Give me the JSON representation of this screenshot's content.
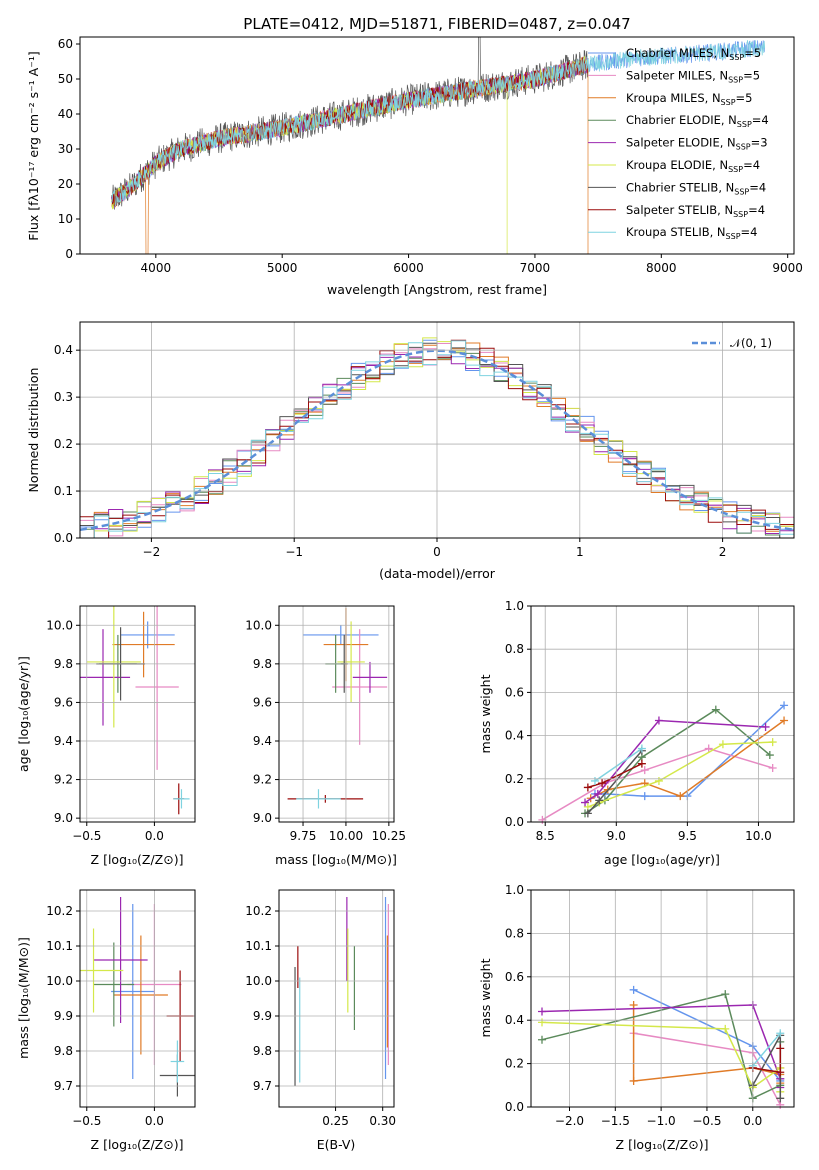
{
  "colors": [
    "#6495ed",
    "#e78ac3",
    "#e07b27",
    "#5b8a5b",
    "#9b27b0",
    "#d4e84a",
    "#555555",
    "#9b0c0c",
    "#7fd3e0"
  ],
  "chart_data": [
    {
      "id": "spectrum",
      "type": "line",
      "title": "PLATE=0412, MJD=51871, FIBERID=0487, z=0.047",
      "xlabel": "wavelength [Angstrom, rest frame]",
      "ylabel": "Flux [fλ10⁻¹⁷ erg cm⁻² s⁻¹ A⁻¹]",
      "xlim": [
        3400,
        9050
      ],
      "ylim": [
        0,
        62
      ],
      "xticks": [
        "4000",
        "5000",
        "6000",
        "7000",
        "8000",
        "9000"
      ],
      "yticks": [
        "0",
        "10",
        "20",
        "30",
        "40",
        "50",
        "60"
      ],
      "legend_position": "top-right",
      "series": [
        {
          "name": "Chabrier MILES, N_SSP=5"
        },
        {
          "name": "Salpeter MILES, N_SSP=5"
        },
        {
          "name": "Kroupa MILES, N_SSP=5"
        },
        {
          "name": "Chabrier ELODIE, N_SSP=4"
        },
        {
          "name": "Salpeter ELODIE, N_SSP=3"
        },
        {
          "name": "Kroupa ELODIE, N_SSP=4"
        },
        {
          "name": "Chabrier STELIB, N_SSP=4"
        },
        {
          "name": "Salpeter STELIB, N_SSP=4"
        },
        {
          "name": "Kroupa STELIB, N_SSP=4"
        }
      ],
      "continuum": {
        "x": [
          3650,
          3800,
          4000,
          4200,
          4500,
          5000,
          5500,
          6000,
          6500,
          7000,
          7400,
          7800,
          8200,
          8800
        ],
        "y": [
          15,
          19,
          26,
          30,
          33,
          36,
          40,
          44,
          47,
          50,
          54,
          56,
          57,
          59
        ]
      },
      "data_limits": [
        3650,
        7420,
        8820
      ]
    },
    {
      "id": "residuals",
      "type": "histogram",
      "xlabel": "(data-model)/error",
      "ylabel": "Normed distribution",
      "xlim": [
        -2.5,
        2.5
      ],
      "ylim": [
        0,
        0.46
      ],
      "xticks": [
        "−2",
        "−1",
        "0",
        "1",
        "2"
      ],
      "yticks": [
        "0.0",
        "0.1",
        "0.2",
        "0.3",
        "0.4"
      ],
      "legend": "𝒩(0, 1)",
      "legend_position": "top-right",
      "bin_width": 0.1,
      "grid": true
    },
    {
      "id": "age-vs-Z",
      "type": "errorbar",
      "xlabel": "Z [log₁₀(Z/Z⊙)]",
      "ylabel": "age  [log₁₀(age/yr)]",
      "xlim": [
        -0.55,
        0.3
      ],
      "ylim": [
        8.98,
        10.1
      ],
      "xticks": [
        "−0.5",
        "0.0"
      ],
      "yticks": [
        "9.0",
        "9.2",
        "9.4",
        "9.6",
        "9.8",
        "10.0"
      ],
      "points": [
        {
          "x": -0.05,
          "y": 9.95,
          "xerr": 0.2,
          "yerr": 0.07
        },
        {
          "x": 0.02,
          "y": 9.68,
          "xerr": 0.16,
          "yerr": 0.43
        },
        {
          "x": -0.08,
          "y": 9.9,
          "xerr": 0.23,
          "yerr": 0.17
        },
        {
          "x": -0.27,
          "y": 9.8,
          "xerr": 0.14,
          "yerr": 0.15
        },
        {
          "x": -0.38,
          "y": 9.73,
          "xerr": 0.2,
          "yerr": 0.25
        },
        {
          "x": -0.3,
          "y": 9.81,
          "xerr": 0.2,
          "yerr": 0.34
        },
        {
          "x": -0.25,
          "y": 9.8,
          "xerr": 0.18,
          "yerr": 0.19
        },
        {
          "x": 0.18,
          "y": 9.1,
          "xerr": 0.04,
          "yerr": 0.08
        },
        {
          "x": 0.2,
          "y": 9.1,
          "xerr": 0.06,
          "yerr": 0.05
        }
      ]
    },
    {
      "id": "age-vs-mass",
      "type": "errorbar",
      "xlabel": "mass [log₁₀(M/M⊙)]",
      "ylabel": "",
      "xlim": [
        9.61,
        10.28
      ],
      "ylim": [
        8.98,
        10.1
      ],
      "xticks": [
        "9.75",
        "10.00",
        "10.25"
      ],
      "yticks": [
        "9.0",
        "9.2",
        "9.4",
        "9.6",
        "9.8",
        "10.0"
      ],
      "points": [
        {
          "x": 9.97,
          "y": 9.95,
          "xerr": 0.22,
          "yerr": 0.05
        },
        {
          "x": 10.08,
          "y": 9.68,
          "xerr": 0.16,
          "yerr": 0.3
        },
        {
          "x": 10.0,
          "y": 9.9,
          "xerr": 0.13,
          "yerr": 0.19
        },
        {
          "x": 9.94,
          "y": 9.8,
          "xerr": 0.06,
          "yerr": 0.15
        },
        {
          "x": 10.14,
          "y": 9.73,
          "xerr": 0.1,
          "yerr": 0.08
        },
        {
          "x": 10.03,
          "y": 9.81,
          "xerr": 0.08,
          "yerr": 0.21
        },
        {
          "x": 9.99,
          "y": 9.8,
          "xerr": 0.02,
          "yerr": 0.15
        },
        {
          "x": 9.88,
          "y": 9.1,
          "xerr": 0.22,
          "yerr": 0.02
        },
        {
          "x": 9.84,
          "y": 9.1,
          "xerr": 0.13,
          "yerr": 0.05
        }
      ]
    },
    {
      "id": "weight-vs-age",
      "type": "line",
      "xlabel": "age  [log₁₀(age/yr)]",
      "ylabel": "mass weight",
      "xlim": [
        8.4,
        10.25
      ],
      "ylim": [
        0,
        1.0
      ],
      "xticks": [
        "8.5",
        "9.0",
        "9.5",
        "10.0"
      ],
      "yticks": [
        "0.0",
        "0.2",
        "0.4",
        "0.6",
        "0.8",
        "1.0"
      ],
      "grid": true,
      "series": [
        {
          "x": [
            8.85,
            8.92,
            9.2,
            9.5,
            10.18
          ],
          "y": [
            0.13,
            0.13,
            0.12,
            0.12,
            0.54
          ]
        },
        {
          "x": [
            8.48,
            8.92,
            9.2,
            9.65,
            10.1
          ],
          "y": [
            0.01,
            0.18,
            0.24,
            0.34,
            0.25
          ]
        },
        {
          "x": [
            8.82,
            8.94,
            9.2,
            9.45,
            10.18
          ],
          "y": [
            0.11,
            0.15,
            0.18,
            0.12,
            0.47
          ]
        },
        {
          "x": [
            8.78,
            8.92,
            9.18,
            9.7,
            10.08
          ],
          "y": [
            0.04,
            0.1,
            0.3,
            0.52,
            0.31
          ]
        },
        {
          "x": [
            8.78,
            8.87,
            9.3,
            10.05
          ],
          "y": [
            0.09,
            0.13,
            0.47,
            0.44
          ]
        },
        {
          "x": [
            8.8,
            8.88,
            9.3,
            9.75,
            10.1
          ],
          "y": [
            0.07,
            0.09,
            0.19,
            0.36,
            0.37
          ]
        },
        {
          "x": [
            8.8,
            8.88,
            9.18
          ],
          "y": [
            0.04,
            0.1,
            0.33
          ]
        },
        {
          "x": [
            8.8,
            8.9,
            9.18
          ],
          "y": [
            0.16,
            0.18,
            0.27
          ]
        },
        {
          "x": [
            8.85,
            9.18
          ],
          "y": [
            0.19,
            0.34
          ]
        }
      ]
    },
    {
      "id": "mass-vs-Z",
      "type": "errorbar",
      "xlabel": "Z [log₁₀(Z/Z⊙)]",
      "ylabel": "mass [log₁₀(M/M⊙)]",
      "xlim": [
        -0.55,
        0.3
      ],
      "ylim": [
        9.64,
        10.26
      ],
      "xticks": [
        "−0.5",
        "0.0"
      ],
      "yticks": [
        "9.7",
        "9.8",
        "9.9",
        "10.0",
        "10.1",
        "10.2"
      ],
      "points": [
        {
          "x": -0.16,
          "y": 9.97,
          "xerr": 0.16,
          "yerr": 0.25
        },
        {
          "x": 0.0,
          "y": 9.99,
          "xerr": 0.2,
          "yerr": 0.23
        },
        {
          "x": -0.1,
          "y": 9.96,
          "xerr": 0.2,
          "yerr": 0.17
        },
        {
          "x": -0.3,
          "y": 9.99,
          "xerr": 0.15,
          "yerr": 0.12
        },
        {
          "x": -0.25,
          "y": 10.06,
          "xerr": 0.2,
          "yerr": 0.18
        },
        {
          "x": -0.45,
          "y": 10.03,
          "xerr": 0.22,
          "yerr": 0.12
        },
        {
          "x": 0.17,
          "y": 9.73,
          "xerr": 0.13,
          "yerr": 0.06
        },
        {
          "x": 0.19,
          "y": 9.9,
          "xerr": 0.1,
          "yerr": 0.13
        },
        {
          "x": 0.17,
          "y": 9.77,
          "xerr": 0.05,
          "yerr": 0.06
        }
      ]
    },
    {
      "id": "mass-vs-ebv",
      "type": "errorbar",
      "xlabel": "E(B-V)",
      "ylabel": "",
      "xlim": [
        0.19,
        0.312
      ],
      "ylim": [
        9.64,
        10.26
      ],
      "xticks": [
        "0.25",
        "0.30"
      ],
      "yticks": [
        "9.7",
        "9.8",
        "9.9",
        "10.0",
        "10.1",
        "10.2"
      ],
      "points": [
        {
          "x": 0.303,
          "y": 9.98,
          "yerr": 0.26
        },
        {
          "x": 0.306,
          "y": 9.99,
          "yerr": 0.23
        },
        {
          "x": 0.305,
          "y": 9.97,
          "yerr": 0.16
        },
        {
          "x": 0.27,
          "y": 9.98,
          "yerr": 0.12
        },
        {
          "x": 0.262,
          "y": 10.12,
          "yerr": 0.12
        },
        {
          "x": 0.263,
          "y": 10.03,
          "yerr": 0.12
        },
        {
          "x": 0.207,
          "y": 9.87,
          "yerr": 0.17
        },
        {
          "x": 0.21,
          "y": 10.04,
          "yerr": 0.06
        },
        {
          "x": 0.212,
          "y": 9.86,
          "yerr": 0.15
        }
      ]
    },
    {
      "id": "weight-vs-Z",
      "type": "line",
      "xlabel": "Z [log₁₀(Z/Z⊙)]",
      "ylabel": "mass weight",
      "xlim": [
        -2.42,
        0.45
      ],
      "ylim": [
        0,
        1.0
      ],
      "xticks": [
        "−2.0",
        "−1.5",
        "−1.0",
        "−0.5",
        "0.0"
      ],
      "yticks": [
        "0.0",
        "0.2",
        "0.4",
        "0.6",
        "0.8",
        "1.0"
      ],
      "grid": true,
      "series": [
        {
          "x": [
            -1.3,
            0.0,
            0.3,
            0.3
          ],
          "y": [
            0.54,
            0.28,
            0.12,
            0.13
          ]
        },
        {
          "x": [
            -1.3,
            0.0,
            0.3,
            0.3
          ],
          "y": [
            0.34,
            0.25,
            0.01,
            0.18
          ]
        },
        {
          "x": [
            -1.3,
            -1.3,
            0.0,
            0.3,
            0.3
          ],
          "y": [
            0.47,
            0.12,
            0.18,
            0.15,
            0.11
          ]
        },
        {
          "x": [
            -2.3,
            -0.3,
            0.0,
            0.3,
            0.3
          ],
          "y": [
            0.31,
            0.52,
            0.04,
            0.1,
            0.3
          ]
        },
        {
          "x": [
            -2.3,
            0.0,
            0.3,
            0.3
          ],
          "y": [
            0.44,
            0.47,
            0.13,
            0.09
          ]
        },
        {
          "x": [
            -2.3,
            -0.3,
            0.0,
            0.3,
            0.3
          ],
          "y": [
            0.39,
            0.36,
            0.09,
            0.18,
            0.07
          ]
        },
        {
          "x": [
            0.0,
            0.3,
            0.3
          ],
          "y": [
            0.1,
            0.33,
            0.04
          ]
        },
        {
          "x": [
            0.0,
            0.3,
            0.3
          ],
          "y": [
            0.18,
            0.16,
            0.27
          ]
        },
        {
          "x": [
            0.0,
            0.3
          ],
          "y": [
            0.19,
            0.34
          ]
        }
      ]
    }
  ]
}
